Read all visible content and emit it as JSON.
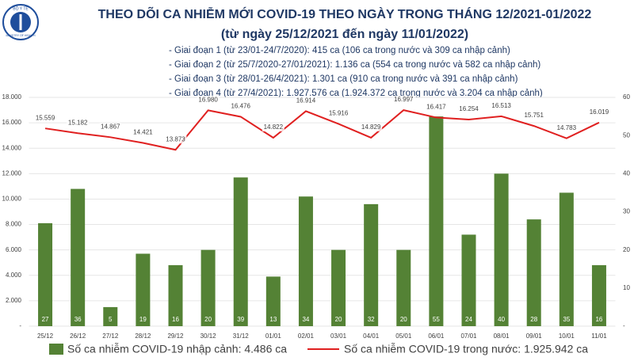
{
  "logo": {
    "top": "BỘ Y TẾ",
    "bottom": "MINISTRY OF HEALTH"
  },
  "chart_data": {
    "type": "bar-line",
    "title": "THEO DÕI CA NHIỄM MỚI COVID-19 THEO NGÀY TRONG THÁNG 12/2021-01/2022",
    "subtitle": "(từ ngày 25/12/2021 đến ngày 11/01/2022)",
    "annotations": [
      "- Giai đoạn 1 (từ 23/01-24/7/2020): 415 ca (106 ca trong nước và 309 ca nhập cảnh)",
      "- Giai đoạn 2 (từ 25/7/2020-27/01/2021): 1.136 ca (554 ca trong nước và 582 ca nhập cảnh)",
      "- Giai đoạn 3 (từ 28/01-26/4/2021): 1.301 ca (910 ca trong nước và 391 ca nhập cảnh)",
      "- Giai đoạn 4 (từ 27/4/2021): 1.927.576 ca (1.924.372 ca trong nước và 3.204 ca nhập cảnh)"
    ],
    "categories": [
      "25/12",
      "26/12",
      "27/12",
      "28/12",
      "29/12",
      "30/12",
      "31/12",
      "01/01",
      "02/01",
      "03/01",
      "04/01",
      "05/01",
      "06/01",
      "07/01",
      "08/01",
      "09/01",
      "10/01",
      "11/01"
    ],
    "series": [
      {
        "name": "Số ca nhiễm COVID-19 nhập cảnh: 4.486 ca",
        "type": "bar",
        "axis": "y2",
        "color": "#548235",
        "values": [
          27,
          36,
          5,
          19,
          16,
          20,
          39,
          13,
          34,
          20,
          32,
          20,
          55,
          24,
          40,
          28,
          35,
          16
        ]
      },
      {
        "name": "Số ca nhiễm COVID-19 trong nước: 1.925.942 ca",
        "type": "line",
        "axis": "y",
        "color": "#e02020",
        "values": [
          15559,
          15182,
          14867,
          14421,
          13873,
          16980,
          16476,
          14822,
          16914,
          15916,
          14829,
          16997,
          16417,
          16254,
          16513,
          15751,
          14783,
          16019
        ],
        "value_labels": [
          "15.559",
          "15.182",
          "14.867",
          "14.421",
          "13.873",
          "16.980",
          "16.476",
          "14.822",
          "16.914",
          "15.916",
          "14.829",
          "16.997",
          "16.417",
          "16.254",
          "16.513",
          "15.751",
          "14.783",
          "16.019"
        ]
      }
    ],
    "ylim": [
      0,
      18000
    ],
    "yticks": [
      {
        "value": 0,
        "label": "-"
      },
      {
        "value": 2000,
        "label": "2.000"
      },
      {
        "value": 4000,
        "label": "4.000"
      },
      {
        "value": 6000,
        "label": "6.000"
      },
      {
        "value": 8000,
        "label": "8.000"
      },
      {
        "value": 10000,
        "label": "10.000"
      },
      {
        "value": 12000,
        "label": "12.000"
      },
      {
        "value": 14000,
        "label": "14.000"
      },
      {
        "value": 16000,
        "label": "16.000"
      },
      {
        "value": 18000,
        "label": "18.000"
      }
    ],
    "y2lim": [
      0,
      60
    ],
    "y2ticks": [
      {
        "value": 0,
        "label": "-"
      },
      10,
      20,
      30,
      40,
      50,
      60
    ],
    "grid": true
  }
}
